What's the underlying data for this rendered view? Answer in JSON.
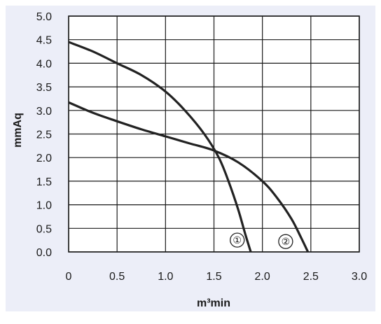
{
  "chart_data": {
    "type": "line",
    "title": "",
    "xlabel": "m³min",
    "ylabel": "mmAq",
    "xlim": [
      0,
      3.0
    ],
    "ylim": [
      0,
      5.0
    ],
    "x_ticks": [
      "0",
      "0.5",
      "1.0",
      "1.5",
      "2.0",
      "2.5",
      "3.0"
    ],
    "y_ticks": [
      "0.0",
      "0.5",
      "1.0",
      "1.5",
      "2.0",
      "2.5",
      "3.0",
      "3.5",
      "4.0",
      "4.5",
      "5.0"
    ],
    "grid": true,
    "series": [
      {
        "marker": "1",
        "x": [
          0,
          0.25,
          0.5,
          0.75,
          1.0,
          1.2,
          1.4,
          1.55,
          1.65,
          1.75,
          1.82,
          1.88
        ],
        "y": [
          4.45,
          4.25,
          4.0,
          3.75,
          3.4,
          3.0,
          2.5,
          2.0,
          1.5,
          0.9,
          0.4,
          0.0
        ]
      },
      {
        "marker": "2",
        "x": [
          0,
          0.25,
          0.5,
          0.75,
          1.0,
          1.25,
          1.5,
          1.75,
          2.0,
          2.15,
          2.3,
          2.4,
          2.47
        ],
        "y": [
          3.17,
          2.95,
          2.77,
          2.6,
          2.45,
          2.3,
          2.15,
          1.9,
          1.5,
          1.15,
          0.7,
          0.3,
          0.0
        ]
      }
    ],
    "markers": [
      {
        "label": "①",
        "x": 1.74,
        "y": 0.25
      },
      {
        "label": "②",
        "x": 2.24,
        "y": 0.22
      }
    ],
    "colors": {
      "background": "#eceef8",
      "plot": "#ffffff",
      "line": "#222222",
      "grid": "#1a1a1a"
    }
  }
}
